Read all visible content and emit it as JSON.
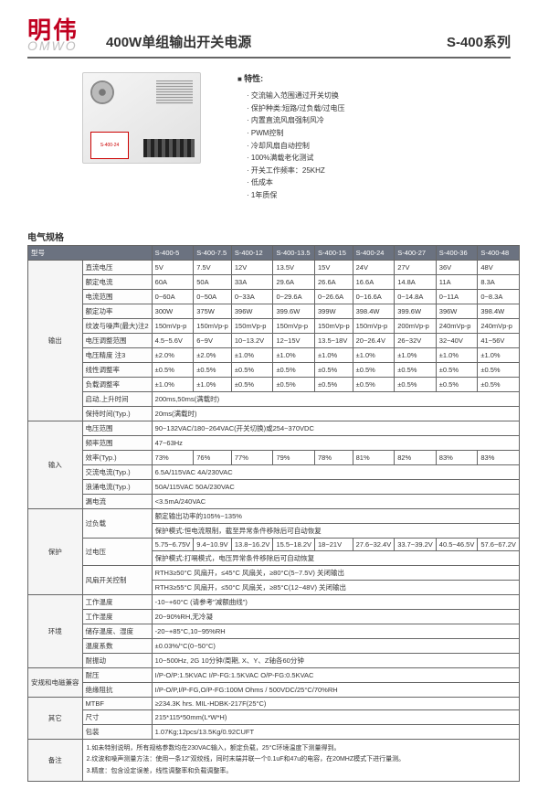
{
  "brand": {
    "cn": "明伟",
    "en": "OMWO"
  },
  "title": "400W单组输出开关电源",
  "series": "S-400系列",
  "features_title": "特性:",
  "features": [
    "交流输入范围通过开关切换",
    "保护种类:短路/过负载/过电压",
    "内置直流风扇强制风冷",
    "PWM控制",
    "冷却风扇自动控制",
    "100%满载老化测试",
    "开关工作频率：25KHZ",
    "低成本",
    "1年质保"
  ],
  "spec_title": "电气规格",
  "models_header": "型号",
  "models": [
    "S-400-5",
    "S-400-7.5",
    "S-400-12",
    "S-400-13.5",
    "S-400-15",
    "S-400-24",
    "S-400-27",
    "S-400-36",
    "S-400-48"
  ],
  "groups": {
    "output": "输出",
    "input": "输入",
    "protection": "保护",
    "env": "环境",
    "safety": "安规和电磁兼容",
    "other": "其它",
    "notes": "备注"
  },
  "rows": {
    "dc_v": {
      "label": "直流电压",
      "vals": [
        "5V",
        "7.5V",
        "12V",
        "13.5V",
        "15V",
        "24V",
        "27V",
        "36V",
        "48V"
      ]
    },
    "rated_i": {
      "label": "额定电流",
      "vals": [
        "60A",
        "50A",
        "33A",
        "29.6A",
        "26.6A",
        "16.6A",
        "14.8A",
        "11A",
        "8.3A"
      ]
    },
    "i_range": {
      "label": "电流范围",
      "vals": [
        "0~60A",
        "0~50A",
        "0~33A",
        "0~29.6A",
        "0~26.6A",
        "0~16.6A",
        "0~14.8A",
        "0~11A",
        "0~8.3A"
      ]
    },
    "rated_p": {
      "label": "额定功率",
      "vals": [
        "300W",
        "375W",
        "396W",
        "399.6W",
        "399W",
        "398.4W",
        "399.6W",
        "396W",
        "398.4W"
      ]
    },
    "ripple": {
      "label": "纹波与噪声(最大)注2",
      "vals": [
        "150mVp-p",
        "150mVp-p",
        "150mVp-p",
        "150mVp-p",
        "150mVp-p",
        "150mVp-p",
        "200mVp-p",
        "240mVp-p",
        "240mVp-p"
      ]
    },
    "v_range": {
      "label": "电压调整范围",
      "vals": [
        "4.5~5.6V",
        "6~9V",
        "10~13.2V",
        "12~15V",
        "13.5~18V",
        "20~26.4V",
        "26~32V",
        "32~40V",
        "41~56V"
      ]
    },
    "v_acc": {
      "label": "电压精度 注3",
      "vals": [
        "±2.0%",
        "±2.0%",
        "±1.0%",
        "±1.0%",
        "±1.0%",
        "±1.0%",
        "±1.0%",
        "±1.0%",
        "±1.0%"
      ]
    },
    "line_reg": {
      "label": "线性调整率",
      "vals": [
        "±0.5%",
        "±0.5%",
        "±0.5%",
        "±0.5%",
        "±0.5%",
        "±0.5%",
        "±0.5%",
        "±0.5%",
        "±0.5%"
      ]
    },
    "load_reg": {
      "label": "负载调整率",
      "vals": [
        "±1.0%",
        "±1.0%",
        "±0.5%",
        "±0.5%",
        "±0.5%",
        "±0.5%",
        "±0.5%",
        "±0.5%",
        "±0.5%"
      ]
    },
    "start_t": {
      "label": "启动,上升时间",
      "val": "200ms,50ms(满载时)"
    },
    "hold_t": {
      "label": "保持时间(Typ.)",
      "val": "20ms(满载时)"
    },
    "in_v": {
      "label": "电压范围",
      "val": "90~132VAC/180~264VAC(开关切换)或254~370VDC"
    },
    "freq": {
      "label": "频率范围",
      "val": "47~63Hz"
    },
    "eff": {
      "label": "效率(Typ.)",
      "vals": [
        "73%",
        "76%",
        "77%",
        "79%",
        "78%",
        "81%",
        "82%",
        "83%",
        "83%"
      ]
    },
    "ac_i": {
      "label": "交流电流(Typ.)",
      "val": "6.5A/115VAC     4A/230VAC"
    },
    "inrush": {
      "label": "浪涌电流(Typ.)",
      "val": "50A/115VAC     50A/230VAC"
    },
    "leak": {
      "label": "漏电流",
      "val": "<3.5mA/240VAC"
    },
    "ol1": {
      "label": "过负载",
      "val": "额定输出功率的105%~135%"
    },
    "ol2": {
      "val": "保护模式:恒电流限制，截至异常条件移除后可自动恢复"
    },
    "ov1": {
      "label": "过电压",
      "vals": [
        "5.75~6.75V",
        "9.4~10.9V",
        "13.8~16.2V",
        "15.5~18.2V",
        "18~21V",
        "27.6~32.4V",
        "33.7~39.2V",
        "40.5~46.5V",
        "57.6~67.2V"
      ]
    },
    "ov2": {
      "val": "保护模式:打嗝模式，电压异常条件移除后可自动恢复"
    },
    "fan1": {
      "label": "风扇开关控制",
      "val": "RTH3≥50°C 风扇开，≤45°C 风扇关，≥80°C(5~7.5V) 关闭输出"
    },
    "fan2": {
      "val": "RTH3≥55°C 风扇开，≤50°C 风扇关，≥85°C(12~48V) 关闭输出"
    },
    "work_t": {
      "label": "工作温度",
      "val": "-10~+60°C (请参考\"减额曲线\")"
    },
    "work_h": {
      "label": "工作湿度",
      "val": "20~90%RH,无冷凝"
    },
    "store": {
      "label": "储存温度、湿度",
      "val": "-20~+85°C,10~95%RH"
    },
    "temp_c": {
      "label": "温度系数",
      "val": "±0.03%/°C(0~50°C)"
    },
    "vib": {
      "label": "耐振动",
      "val": "10~500Hz, 2G 10分钟/周期, X、Y、Z轴各60分钟"
    },
    "withstand": {
      "label": "耐压",
      "val": "I/P-O/P:1.5KVAC    I/P-FG:1.5KVAC    O/P-FG:0.5KVAC"
    },
    "iso": {
      "label": "绝缘阻抗",
      "val": "I/P-O/P,I/P-FG,O/P-FG:100M Ohms / 500VDC/25°C/70%RH"
    },
    "mtbf": {
      "label": "MTBF",
      "val": "≥234.3K hrs.    MIL-HDBK-217F(25°C)"
    },
    "size": {
      "label": "尺寸",
      "val": "215*115*50mm(L*W*H)"
    },
    "pack": {
      "label": "包装",
      "val": "1.07Kg;12pcs/13.5Kg/0.92CUFT"
    }
  },
  "notes": [
    "1.如未特别说明，所有规格参数均在230VAC输入，额定负载，25°C环境温度下测量得到。",
    "2.纹波和噪声测量方法：使用一条12\"双绞线，同时末端并联一个0.1uF和47u的电容，在20MHZ模式下进行量测。",
    "3.精度：包含设定误差，线性调整率和负载调整率。"
  ]
}
